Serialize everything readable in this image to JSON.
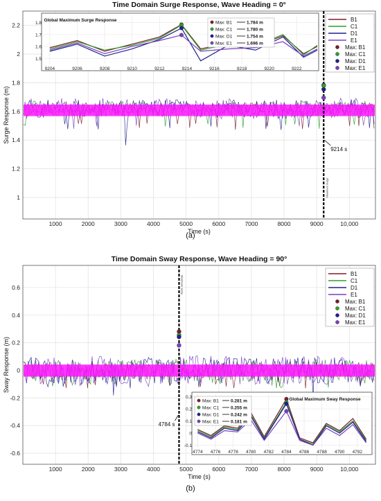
{
  "colors": {
    "B1": "#7b1c2a",
    "C1": "#2f9e2f",
    "D1": "#1f1f8f",
    "E1": "#7a3fbf",
    "fill": "#ff14ff",
    "vline": "#000000",
    "grid": "#e3e3e3"
  },
  "captions": {
    "a": "(a)",
    "b": "(b)"
  },
  "chart_data": [
    {
      "type": "line",
      "title": "Time Domain Surge Response, Wave Heading = 0°",
      "xlabel": "Time (s)",
      "ylabel": "Surge Response (m)",
      "xlim": [
        0,
        10800
      ],
      "ylim": [
        0.85,
        2.3
      ],
      "xticks": [
        1000,
        2000,
        3000,
        4000,
        5000,
        6000,
        7000,
        8000,
        9000,
        10000
      ],
      "xtick_labels": [
        "1000",
        "2000",
        "3000",
        "4000",
        "5000",
        "6000",
        "7000",
        "8000",
        "9000",
        "10,000"
      ],
      "yticks": [
        1.0,
        1.2,
        1.4,
        1.6,
        1.8,
        2.0,
        2.2
      ],
      "ytick_labels": [
        "1",
        "1.2",
        "1.4",
        "1.6",
        "1.8",
        "2",
        "2.2"
      ],
      "grid": true,
      "legend_position": "top-right",
      "series": [
        {
          "name": "B1"
        },
        {
          "name": "C1"
        },
        {
          "name": "D1"
        },
        {
          "name": "E1"
        }
      ],
      "signal": {
        "mean": 1.62,
        "upper": 1.7,
        "lower": 1.47,
        "min_spike": 1.33
      },
      "marker": {
        "x": 9214,
        "label": "9214 s",
        "line_note": "Maximum Surge"
      },
      "maxima": [
        {
          "name": "Max: B1",
          "value": 1.784
        },
        {
          "name": "Max: C1",
          "value": 1.78
        },
        {
          "name": "Max: D1",
          "value": 1.754
        },
        {
          "name": "Max: E1",
          "value": 1.696
        }
      ],
      "inset": {
        "title": "Global Maximum Surge Response",
        "xlim": [
          9203.5,
          9223.5
        ],
        "ylim": [
          1.45,
          1.85
        ],
        "xticks": [
          9204,
          9206,
          9208,
          9210,
          9212,
          9214,
          9216,
          9218,
          9220,
          9222
        ],
        "yticks": [
          1.5,
          1.6,
          1.7,
          1.8
        ],
        "x": [
          9204,
          9206,
          9208,
          9210,
          9212,
          9213.6,
          9215,
          9217,
          9219,
          9221,
          9222.5,
          9223.5
        ],
        "series": [
          {
            "name": "B1",
            "values": [
              1.59,
              1.65,
              1.56,
              1.62,
              1.68,
              1.784,
              1.58,
              1.63,
              1.6,
              1.69,
              1.54,
              1.6
            ]
          },
          {
            "name": "C1",
            "values": [
              1.58,
              1.64,
              1.57,
              1.61,
              1.67,
              1.78,
              1.57,
              1.62,
              1.61,
              1.7,
              1.53,
              1.61
            ]
          },
          {
            "name": "D1",
            "values": [
              1.56,
              1.62,
              1.52,
              1.58,
              1.66,
              1.754,
              1.48,
              1.61,
              1.57,
              1.68,
              1.51,
              1.57
            ]
          },
          {
            "name": "E1",
            "values": [
              1.57,
              1.63,
              1.54,
              1.6,
              1.65,
              1.696,
              1.56,
              1.58,
              1.59,
              1.64,
              1.52,
              1.58
            ]
          }
        ],
        "legend": [
          "Max: B1",
          "Max: C1",
          "Max: D1",
          "Max: E1"
        ],
        "legend_values": [
          "1.784 m",
          "1.780 m",
          "1.754 m",
          "1.696 m"
        ]
      }
    },
    {
      "type": "line",
      "title": "Time Domain Sway Response, Wave Heading = 90°",
      "xlabel": "Time (s)",
      "ylabel": "Sway Response (m)",
      "xlim": [
        0,
        10800
      ],
      "ylim": [
        -0.68,
        0.76
      ],
      "xticks": [
        1000,
        2000,
        3000,
        4000,
        5000,
        6000,
        7000,
        8000,
        9000,
        10000
      ],
      "xtick_labels": [
        "1000",
        "2000",
        "3000",
        "4000",
        "5000",
        "6000",
        "7000",
        "8000",
        "9000",
        "10,000"
      ],
      "yticks": [
        -0.6,
        -0.4,
        -0.2,
        0,
        0.2,
        0.4,
        0.6
      ],
      "ytick_labels": [
        "-0.6",
        "-0.4",
        "-0.2",
        "0",
        "0.2",
        "0.4",
        "0.6"
      ],
      "grid": true,
      "legend_position": "top-right",
      "series": [
        {
          "name": "B1"
        },
        {
          "name": "C1"
        },
        {
          "name": "D1"
        },
        {
          "name": "E1"
        }
      ],
      "signal": {
        "mean": 0.0,
        "upper": 0.12,
        "lower": -0.13,
        "min_spike": -0.2
      },
      "marker": {
        "x": 4784,
        "label": "4784 s",
        "line_note": "Maximum Sway"
      },
      "maxima": [
        {
          "name": "Max: B1",
          "value": 0.281
        },
        {
          "name": "Max: C1",
          "value": 0.255
        },
        {
          "name": "Max: D1",
          "value": 0.242
        },
        {
          "name": "Max: E1",
          "value": 0.181
        }
      ],
      "inset": {
        "title": "Global Maximum Sway Response",
        "xlim": [
          4773.5,
          4793.5
        ],
        "ylim": [
          -0.12,
          0.32
        ],
        "xticks": [
          4774,
          4776,
          4778,
          4780,
          4782,
          4784,
          4786,
          4788,
          4790,
          4792
        ],
        "yticks": [
          -0.1,
          0,
          0.1,
          0.2,
          0.3
        ],
        "x": [
          4774,
          4775.5,
          4777,
          4778.5,
          4780,
          4781.5,
          4784,
          4785.5,
          4787,
          4788.5,
          4790,
          4791.5,
          4793
        ],
        "series": [
          {
            "name": "B1",
            "values": [
              0.03,
              -0.02,
              0.06,
              0.04,
              0.17,
              -0.03,
              0.281,
              -0.04,
              -0.08,
              0.08,
              0.02,
              0.12,
              -0.05
            ]
          },
          {
            "name": "C1",
            "values": [
              0.02,
              -0.03,
              0.05,
              0.03,
              0.15,
              -0.04,
              0.255,
              -0.05,
              -0.09,
              0.07,
              0.01,
              0.1,
              -0.06
            ]
          },
          {
            "name": "D1",
            "values": [
              0.01,
              -0.04,
              0.04,
              0.02,
              0.14,
              -0.05,
              0.242,
              -0.05,
              -0.1,
              0.06,
              0.0,
              0.09,
              -0.07
            ]
          },
          {
            "name": "E1",
            "values": [
              0.0,
              -0.05,
              0.02,
              0.01,
              0.11,
              -0.06,
              0.181,
              -0.06,
              -0.1,
              0.04,
              -0.02,
              0.07,
              -0.08
            ]
          }
        ],
        "legend": [
          "Max: B1",
          "Max: C1",
          "Max: D1",
          "Max: E1"
        ],
        "legend_values": [
          "0.281 m",
          "0.255 m",
          "0.242 m",
          "0.181 m"
        ]
      }
    }
  ]
}
